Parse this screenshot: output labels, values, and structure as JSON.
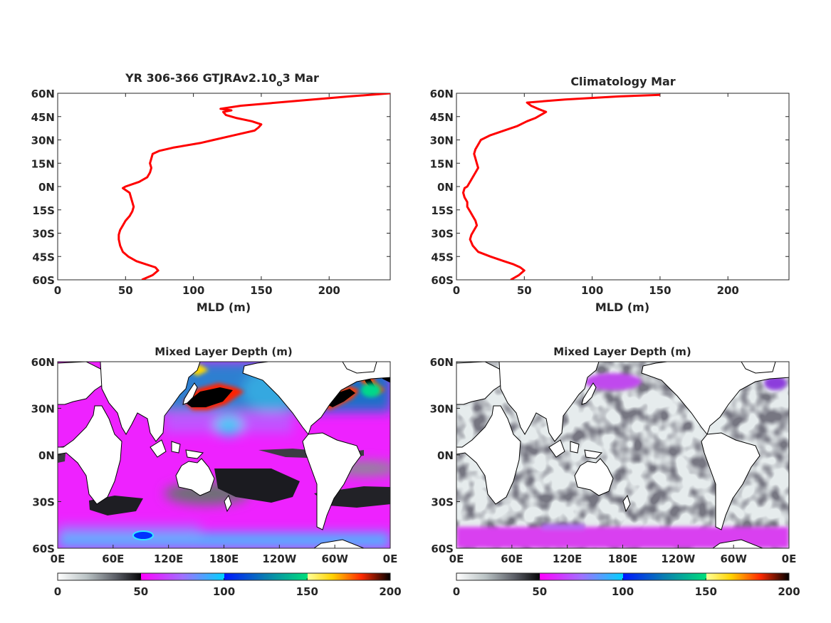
{
  "colors": {
    "profile_line": "#ff0000",
    "axis": "#262626",
    "land": "#ffffff",
    "coast": "#000000"
  },
  "chart_data": [
    {
      "id": "profile-model",
      "type": "line",
      "title_main": "YR 306-366 GTJRAv2.10",
      "title_sub": "o",
      "title_end": "3 Mar",
      "xlabel": "MLD (m)",
      "xlim": [
        0,
        245
      ],
      "ylim": [
        -60,
        60
      ],
      "xticks": [
        0,
        50,
        100,
        150,
        200
      ],
      "yticks": [
        -60,
        -45,
        -30,
        -15,
        0,
        15,
        30,
        45,
        60
      ],
      "ytick_labels": [
        "60S",
        "45S",
        "30S",
        "15S",
        "0N",
        "15N",
        "30N",
        "45N",
        "60N"
      ],
      "series": [
        {
          "y": [
            -60,
            -57,
            -54,
            -52,
            -50,
            -48,
            -45,
            -42,
            -38,
            -34,
            -31,
            -28,
            -25,
            -22,
            -19,
            -16,
            -13,
            -10,
            -7,
            -4,
            -1,
            0,
            3,
            6,
            9,
            12,
            15,
            18,
            21,
            23,
            25,
            28,
            30,
            33,
            36,
            38,
            40,
            42,
            44,
            46,
            48,
            49,
            50,
            52,
            55,
            58,
            60
          ],
          "x": [
            62,
            70,
            74,
            72,
            65,
            58,
            52,
            48,
            46,
            45,
            45,
            46,
            48,
            50,
            53,
            55,
            56,
            55,
            54,
            53,
            48,
            50,
            60,
            66,
            68,
            69,
            68,
            69,
            70,
            75,
            85,
            105,
            115,
            130,
            145,
            148,
            150,
            143,
            132,
            124,
            122,
            128,
            120,
            135,
            175,
            215,
            245
          ]
        }
      ]
    },
    {
      "id": "profile-clim",
      "type": "line",
      "title_main": "Climatology Mar",
      "xlabel": "MLD (m)",
      "xlim": [
        0,
        245
      ],
      "ylim": [
        -60,
        60
      ],
      "xticks": [
        0,
        50,
        100,
        150,
        200
      ],
      "yticks": [
        -60,
        -45,
        -30,
        -15,
        0,
        15,
        30,
        45,
        60
      ],
      "ytick_labels": [
        "60S",
        "45S",
        "30S",
        "15S",
        "0N",
        "15N",
        "30N",
        "45N",
        "60N"
      ],
      "series": [
        {
          "y": [
            -60,
            -57,
            -54,
            -52,
            -50,
            -48,
            -45,
            -42,
            -38,
            -34,
            -31,
            -28,
            -25,
            -22,
            -19,
            -16,
            -13,
            -10,
            -7,
            -4,
            -1,
            0,
            3,
            6,
            9,
            12,
            15,
            18,
            21,
            24,
            27,
            30,
            33,
            36,
            39,
            42,
            44,
            46,
            48,
            50,
            52,
            54,
            56,
            58,
            59
          ],
          "x": [
            40,
            46,
            50,
            47,
            42,
            35,
            25,
            16,
            12,
            10,
            11,
            13,
            15,
            14,
            12,
            10,
            8,
            8,
            6,
            5,
            6,
            8,
            10,
            12,
            14,
            16,
            15,
            14,
            13,
            14,
            16,
            18,
            25,
            35,
            45,
            52,
            58,
            62,
            66,
            60,
            55,
            52,
            80,
            120,
            150
          ]
        }
      ]
    },
    {
      "id": "map-model",
      "type": "heatmap",
      "title_main": "Mixed Layer Depth (m)",
      "xtick_labels": [
        "0E",
        "60E",
        "120E",
        "180E",
        "120W",
        "60W",
        "0E"
      ],
      "ytick_labels": [
        "60N",
        "30N",
        "0N",
        "30S",
        "60S"
      ],
      "colorbar": {
        "ticks": [
          0,
          50,
          100,
          150,
          200
        ],
        "range": [
          0,
          200
        ]
      }
    },
    {
      "id": "map-clim",
      "type": "heatmap",
      "title_main": "Mixed Layer Depth (m)",
      "xtick_labels": [
        "0E",
        "60E",
        "120E",
        "180E",
        "120W",
        "60W",
        "0E"
      ],
      "ytick_labels": [
        "60N",
        "30N",
        "0N",
        "30S",
        "60S"
      ],
      "colorbar": {
        "ticks": [
          0,
          50,
          100,
          150,
          200
        ],
        "range": [
          0,
          200
        ]
      }
    }
  ]
}
